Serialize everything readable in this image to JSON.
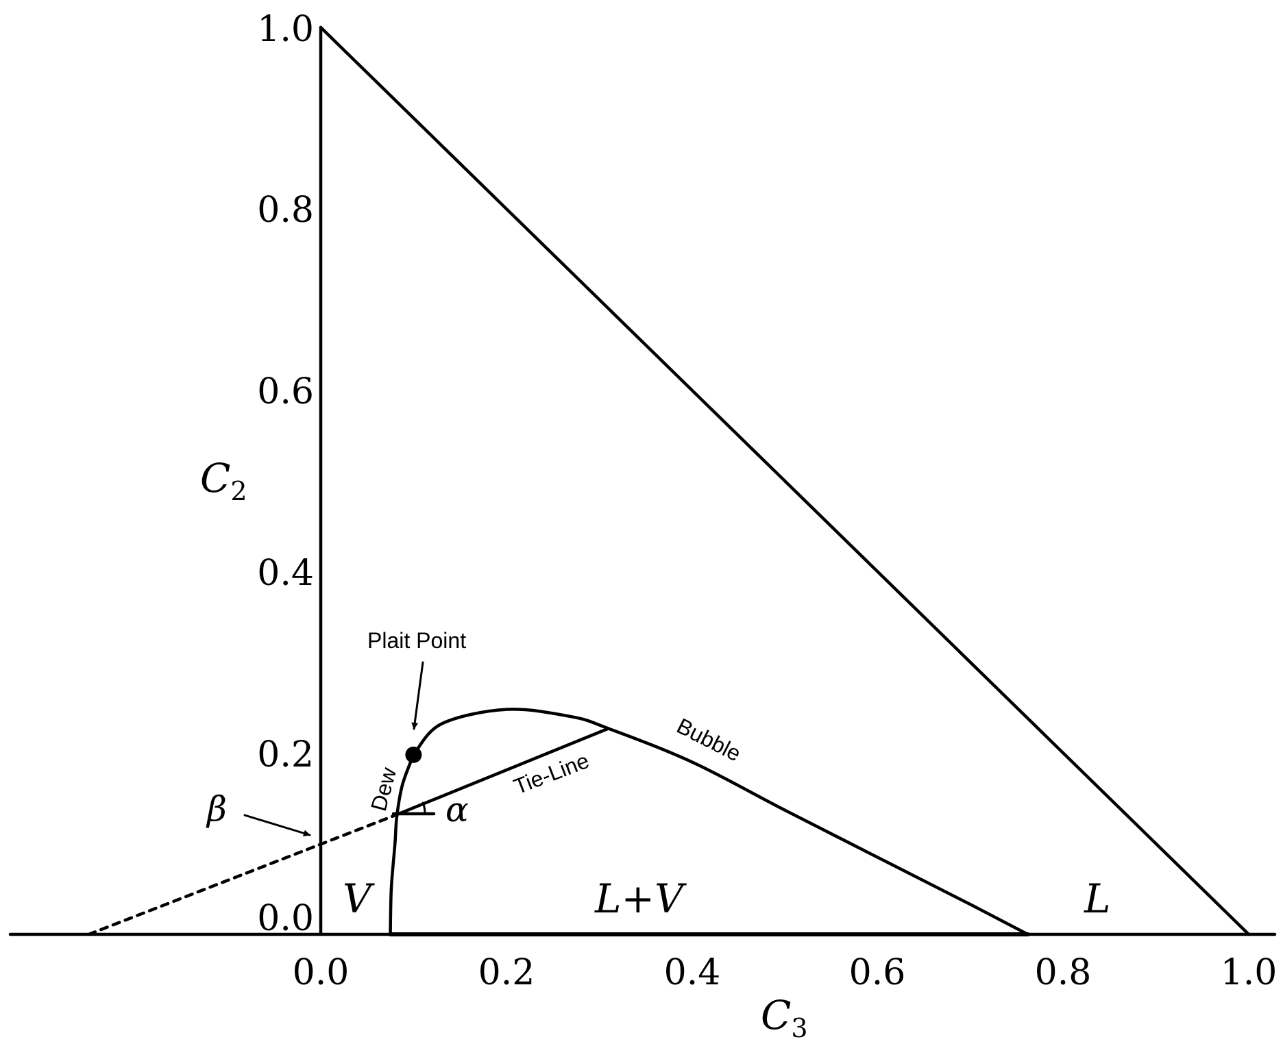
{
  "x_axis": {
    "symbol": "C",
    "subscript": "3",
    "ticks": [
      "0.0",
      "0.2",
      "0.4",
      "0.6",
      "0.8",
      "1.0"
    ],
    "tick_values": [
      0.0,
      0.2,
      0.4,
      0.6,
      0.8,
      1.0
    ]
  },
  "y_axis": {
    "symbol": "C",
    "subscript": "2",
    "ticks": [
      "0.0",
      "0.2",
      "0.4",
      "0.6",
      "0.8",
      "1.0"
    ],
    "tick_values": [
      0.0,
      0.2,
      0.4,
      0.6,
      0.8,
      1.0
    ]
  },
  "regions": {
    "vapor": "V",
    "two_phase": "L+V",
    "liquid": "L"
  },
  "labels": {
    "plait_point": "Plait Point",
    "dew": "Dew",
    "bubble": "Bubble",
    "tie_line": "Tie-Line",
    "alpha": "α",
    "beta": "β"
  },
  "curves": {
    "triangle": [
      [
        0.0,
        0.0
      ],
      [
        0.0,
        1.0
      ],
      [
        1.0,
        0.0
      ]
    ],
    "dew_curve": [
      [
        0.075,
        0.0
      ],
      [
        0.076,
        0.05
      ],
      [
        0.08,
        0.1
      ],
      [
        0.082,
        0.13
      ],
      [
        0.088,
        0.165
      ],
      [
        0.1,
        0.198
      ]
    ],
    "bubble_curve": [
      [
        0.1,
        0.198
      ],
      [
        0.13,
        0.232
      ],
      [
        0.2,
        0.248
      ],
      [
        0.27,
        0.24
      ],
      [
        0.31,
        0.227
      ],
      [
        0.4,
        0.19
      ],
      [
        0.5,
        0.137
      ],
      [
        0.6,
        0.085
      ],
      [
        0.7,
        0.033
      ],
      [
        0.762,
        0.0
      ]
    ],
    "tie_line": [
      [
        0.082,
        0.132
      ],
      [
        0.31,
        0.227
      ]
    ],
    "tie_line_extension": [
      [
        -0.25,
        0.0
      ],
      [
        0.082,
        0.132
      ]
    ],
    "base_segment": [
      [
        0.075,
        0.0
      ],
      [
        0.762,
        0.0
      ]
    ],
    "plait_point": [
      0.1,
      0.198
    ]
  }
}
